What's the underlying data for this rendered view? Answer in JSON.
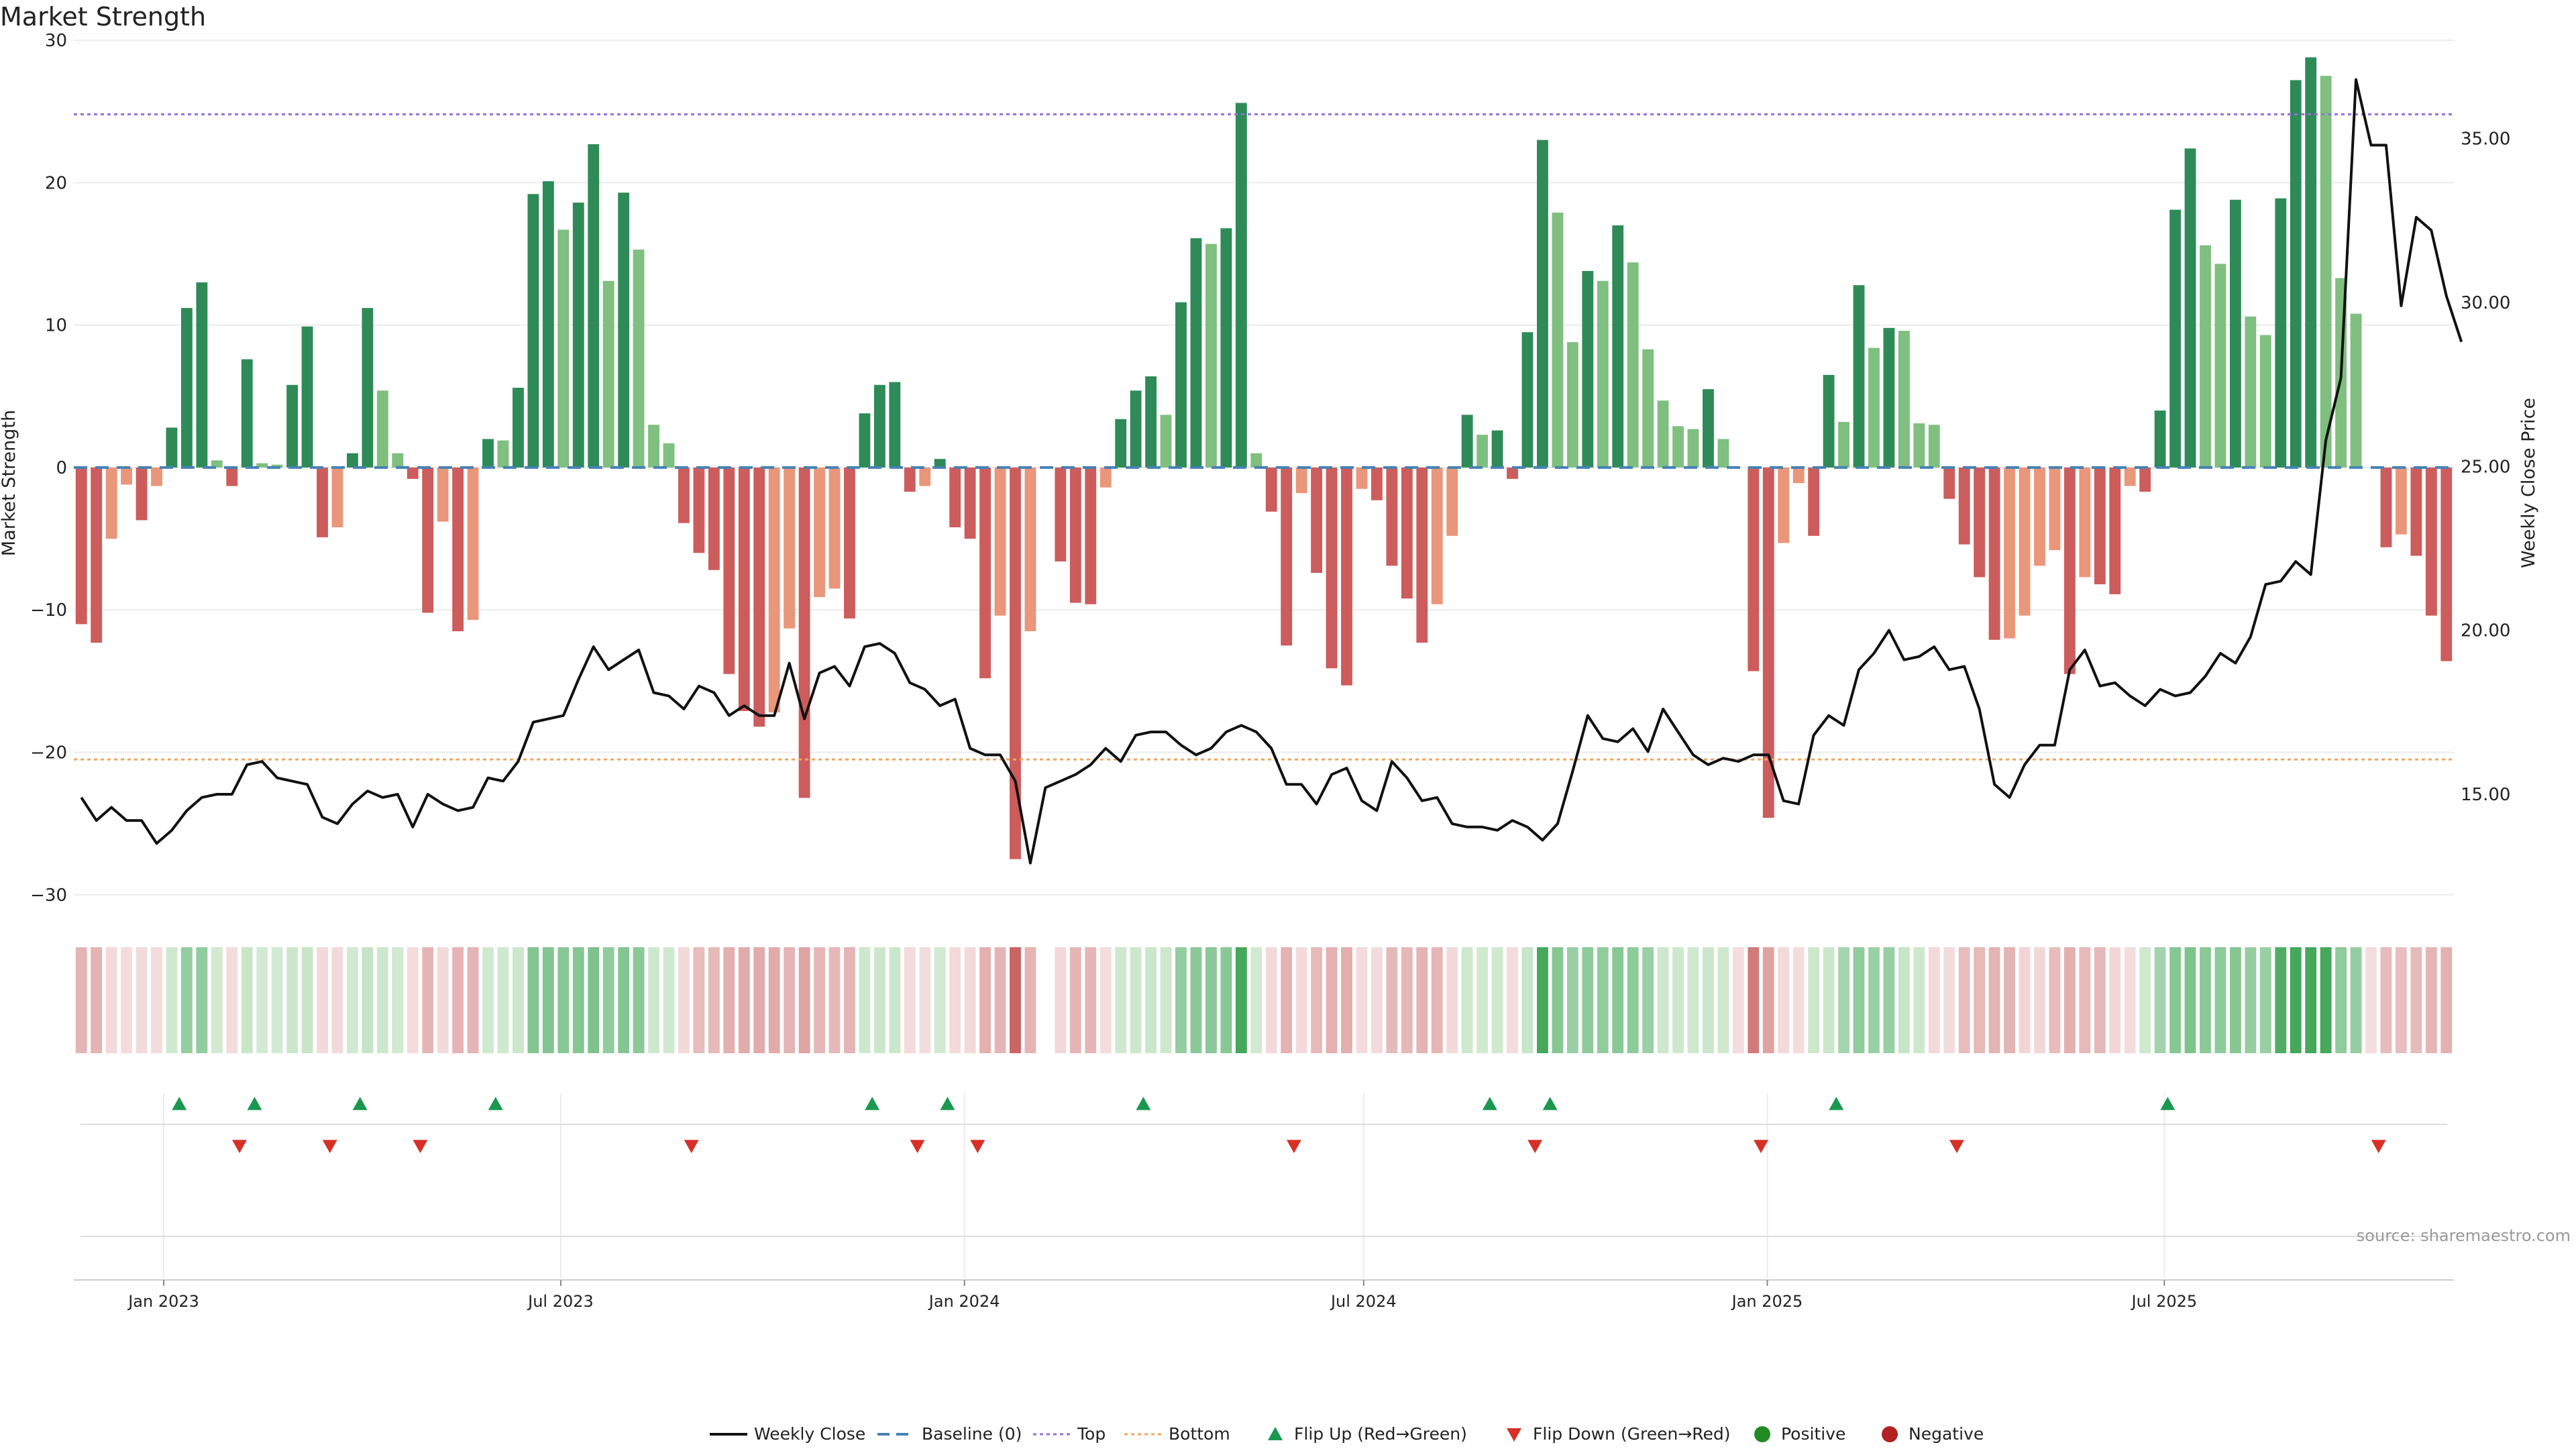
{
  "chart_data": {
    "type": "bar",
    "title": "Market Strength",
    "ylabel": "Market Strength",
    "y2label": "Weekly Close Price",
    "ylim": [
      -31,
      30
    ],
    "y2lim": [
      11.5,
      38.0
    ],
    "yticks": [
      30,
      20,
      10,
      0,
      -10,
      -20,
      -30
    ],
    "yticklabels": [
      "30",
      "20",
      "10",
      "0",
      "−10",
      "−20",
      "−30"
    ],
    "y2ticks": [
      35,
      30,
      25,
      20,
      15
    ],
    "y2ticklabels": [
      "35.00",
      "30.00",
      "25.00",
      "20.00",
      "15.00"
    ],
    "x_start": "2022-11-21",
    "x_end": "2025-11-10",
    "xticks": [
      {
        "date": "2023-01-01",
        "label": "Jan 2023"
      },
      {
        "date": "2023-07-01",
        "label": "Jul 2023"
      },
      {
        "date": "2024-01-01",
        "label": "Jan 2024"
      },
      {
        "date": "2024-07-01",
        "label": "Jul 2024"
      },
      {
        "date": "2025-01-01",
        "label": "Jan 2025"
      },
      {
        "date": "2025-07-01",
        "label": "Jul 2025"
      }
    ],
    "levels": {
      "top": 24.8,
      "bottom": -20.5,
      "baseline": 0
    },
    "strength": [
      -11,
      -12.3,
      -5,
      -1.2,
      -3.7,
      -1.3,
      2.8,
      11.2,
      13,
      0.5,
      -1.3,
      7.6,
      0.3,
      0.2,
      5.8,
      9.9,
      -4.9,
      -4.2,
      1,
      11.2,
      5.4,
      1,
      -0.8,
      -10.2,
      -3.8,
      -11.5,
      -10.7,
      2,
      1.9,
      5.6,
      19.2,
      20.1,
      16.7,
      18.6,
      22.7,
      13.1,
      19.3,
      15.3,
      3,
      1.7,
      -3.9,
      -6,
      -7.2,
      -14.5,
      -17.1,
      -18.2,
      -17.2,
      -11.3,
      -23.2,
      -9.1,
      -8.5,
      -10.6,
      3.8,
      5.8,
      6,
      -1.7,
      -1.3,
      0.6,
      -4.2,
      -5,
      -14.8,
      -10.4,
      -27.5,
      -11.5,
      0,
      -6.6,
      -9.5,
      -9.6,
      -1.4,
      3.4,
      5.4,
      6.4,
      3.7,
      11.6,
      16.1,
      15.7,
      16.8,
      25.6,
      1,
      -3.1,
      -12.5,
      -1.8,
      -7.4,
      -14.1,
      -15.3,
      -1.5,
      -2.3,
      -6.9,
      -9.2,
      -12.3,
      -9.6,
      -4.8,
      3.7,
      2.3,
      2.6,
      -0.8,
      9.5,
      23,
      17.9,
      8.8,
      13.8,
      13.1,
      17,
      14.4,
      8.3,
      4.7,
      2.9,
      2.7,
      5.5,
      2,
      0,
      -14.3,
      -24.6,
      -5.3,
      -1.1,
      -4.8,
      6.5,
      3.2,
      12.8,
      8.4,
      9.8,
      9.6,
      3.1,
      3,
      -2.2,
      -5.4,
      -7.7,
      -12.1,
      -12,
      -10.4,
      -6.9,
      -5.8,
      -14.5,
      -7.7,
      -8.2,
      -8.9,
      -1.3,
      -1.7,
      4,
      18.1,
      22.4,
      15.6,
      14.3,
      18.8,
      10.6,
      9.3,
      18.9,
      27.2,
      28.8,
      27.5,
      13.3,
      10.8,
      0,
      -5.6,
      -4.7,
      -6.2,
      -10.4,
      -13.6
    ],
    "close": [
      14.9,
      14.2,
      14.6,
      14.2,
      14.2,
      13.5,
      13.9,
      14.5,
      14.9,
      15,
      15,
      15.9,
      16,
      15.5,
      15.4,
      15.3,
      14.3,
      14.1,
      14.7,
      15.1,
      14.9,
      15,
      14,
      15,
      14.7,
      14.5,
      14.6,
      15.5,
      15.4,
      16.0,
      17.2,
      17.3,
      17.4,
      18.5,
      19.5,
      18.8,
      19.1,
      19.4,
      18.1,
      18.0,
      17.6,
      18.3,
      18.1,
      17.4,
      17.7,
      17.4,
      17.4,
      19.0,
      17.3,
      18.7,
      18.9,
      18.3,
      19.5,
      19.6,
      19.3,
      18.4,
      18.2,
      17.7,
      17.9,
      16.4,
      16.2,
      16.2,
      15.4,
      12.9,
      15.2,
      15.4,
      15.6,
      15.9,
      16.4,
      16.0,
      16.8,
      16.9,
      16.9,
      16.5,
      16.2,
      16.4,
      16.9,
      17.1,
      16.9,
      16.4,
      15.3,
      15.3,
      14.7,
      15.6,
      15.8,
      14.8,
      14.5,
      16.0,
      15.5,
      14.8,
      14.9,
      14.1,
      14.0,
      14.0,
      13.9,
      14.2,
      14.0,
      13.6,
      14.1,
      15.7,
      17.4,
      16.7,
      16.6,
      17.0,
      16.3,
      17.6,
      16.9,
      16.2,
      15.9,
      16.1,
      16.0,
      16.2,
      16.2,
      14.8,
      14.7,
      16.8,
      17.4,
      17.1,
      18.8,
      19.3,
      20.0,
      19.1,
      19.2,
      19.5,
      18.8,
      18.9,
      17.6,
      15.3,
      14.9,
      15.9,
      16.5,
      16.5,
      18.8,
      19.4,
      18.3,
      18.4,
      18.0,
      17.7,
      18.2,
      18.0,
      18.1,
      18.6,
      19.3,
      19.0,
      19.8,
      21.4,
      21.5,
      22.1,
      21.7,
      25.8,
      27.7,
      36.8,
      34.8,
      34.8,
      29.9,
      32.6,
      32.2,
      30.2,
      28.8
    ],
    "heat": [
      -2,
      -2,
      -1,
      -1,
      -1,
      -1,
      1,
      2,
      2,
      1,
      -1,
      1,
      1,
      1,
      1,
      1,
      -1,
      -1,
      1,
      1,
      1,
      1,
      -1,
      -2,
      -1,
      -2,
      -2,
      1,
      1,
      1,
      2,
      2,
      2,
      2,
      2,
      2,
      2,
      2,
      1,
      1,
      -1,
      -2,
      -2,
      -2,
      -2,
      -2,
      -2,
      -2,
      -2,
      -2,
      -2,
      -2,
      1,
      1,
      1,
      -1,
      -1,
      1,
      -1,
      -1,
      -2,
      -2,
      -3,
      -2,
      0,
      -1,
      -2,
      -2,
      -1,
      1,
      1,
      1,
      1,
      2,
      2,
      2,
      2,
      3,
      1,
      -1,
      -2,
      -1,
      -2,
      -2,
      -2,
      -1,
      -1,
      -2,
      -2,
      -2,
      -2,
      -1,
      1,
      1,
      1,
      -1,
      1,
      3,
      2,
      2,
      2,
      2,
      2,
      2,
      2,
      1,
      1,
      1,
      1,
      1,
      -1,
      -3,
      -2,
      -1,
      -1,
      1,
      1,
      2,
      2,
      2,
      2,
      1,
      1,
      -1,
      -1,
      -2,
      -2,
      -2,
      -2,
      -1,
      -1,
      -2,
      -2,
      -2,
      -2,
      -1,
      -1,
      1,
      2,
      2,
      2,
      2,
      2,
      2,
      2,
      2,
      3,
      3,
      3,
      3,
      2,
      2,
      -1,
      -2,
      -2,
      -2,
      -2,
      -2
    ],
    "flip_up_weeks": [
      6,
      11,
      18,
      27,
      52,
      57,
      70,
      93,
      97,
      116,
      138
    ],
    "flip_down_weeks": [
      10,
      16,
      22,
      40,
      55,
      59,
      80,
      96,
      111,
      124,
      152
    ],
    "colors": {
      "strong_green": "#2e8b57",
      "weak_green": "#7fbf7f",
      "strong_red": "#cd5c5c",
      "weak_red": "#e9967a",
      "line": "#111111",
      "baseline": "#4682b4",
      "top": "#9370db",
      "bottom": "#f4a460",
      "flip_up": "#1a9850",
      "flip_down": "#d73027",
      "positive": "#228b22",
      "negative": "#b22222"
    },
    "legend": [
      {
        "label": "Weekly Close",
        "kind": "line"
      },
      {
        "label": "Baseline (0)",
        "kind": "dash"
      },
      {
        "label": "Top",
        "kind": "dot-purple"
      },
      {
        "label": "Bottom",
        "kind": "dot-orange"
      },
      {
        "label": "Flip Up (Red→Green)",
        "kind": "tri-up"
      },
      {
        "label": "Flip Down (Green→Red)",
        "kind": "tri-down"
      },
      {
        "label": "Positive",
        "kind": "circle-green"
      },
      {
        "label": "Negative",
        "kind": "circle-red"
      }
    ],
    "source": "source: sharemaestro.com"
  }
}
